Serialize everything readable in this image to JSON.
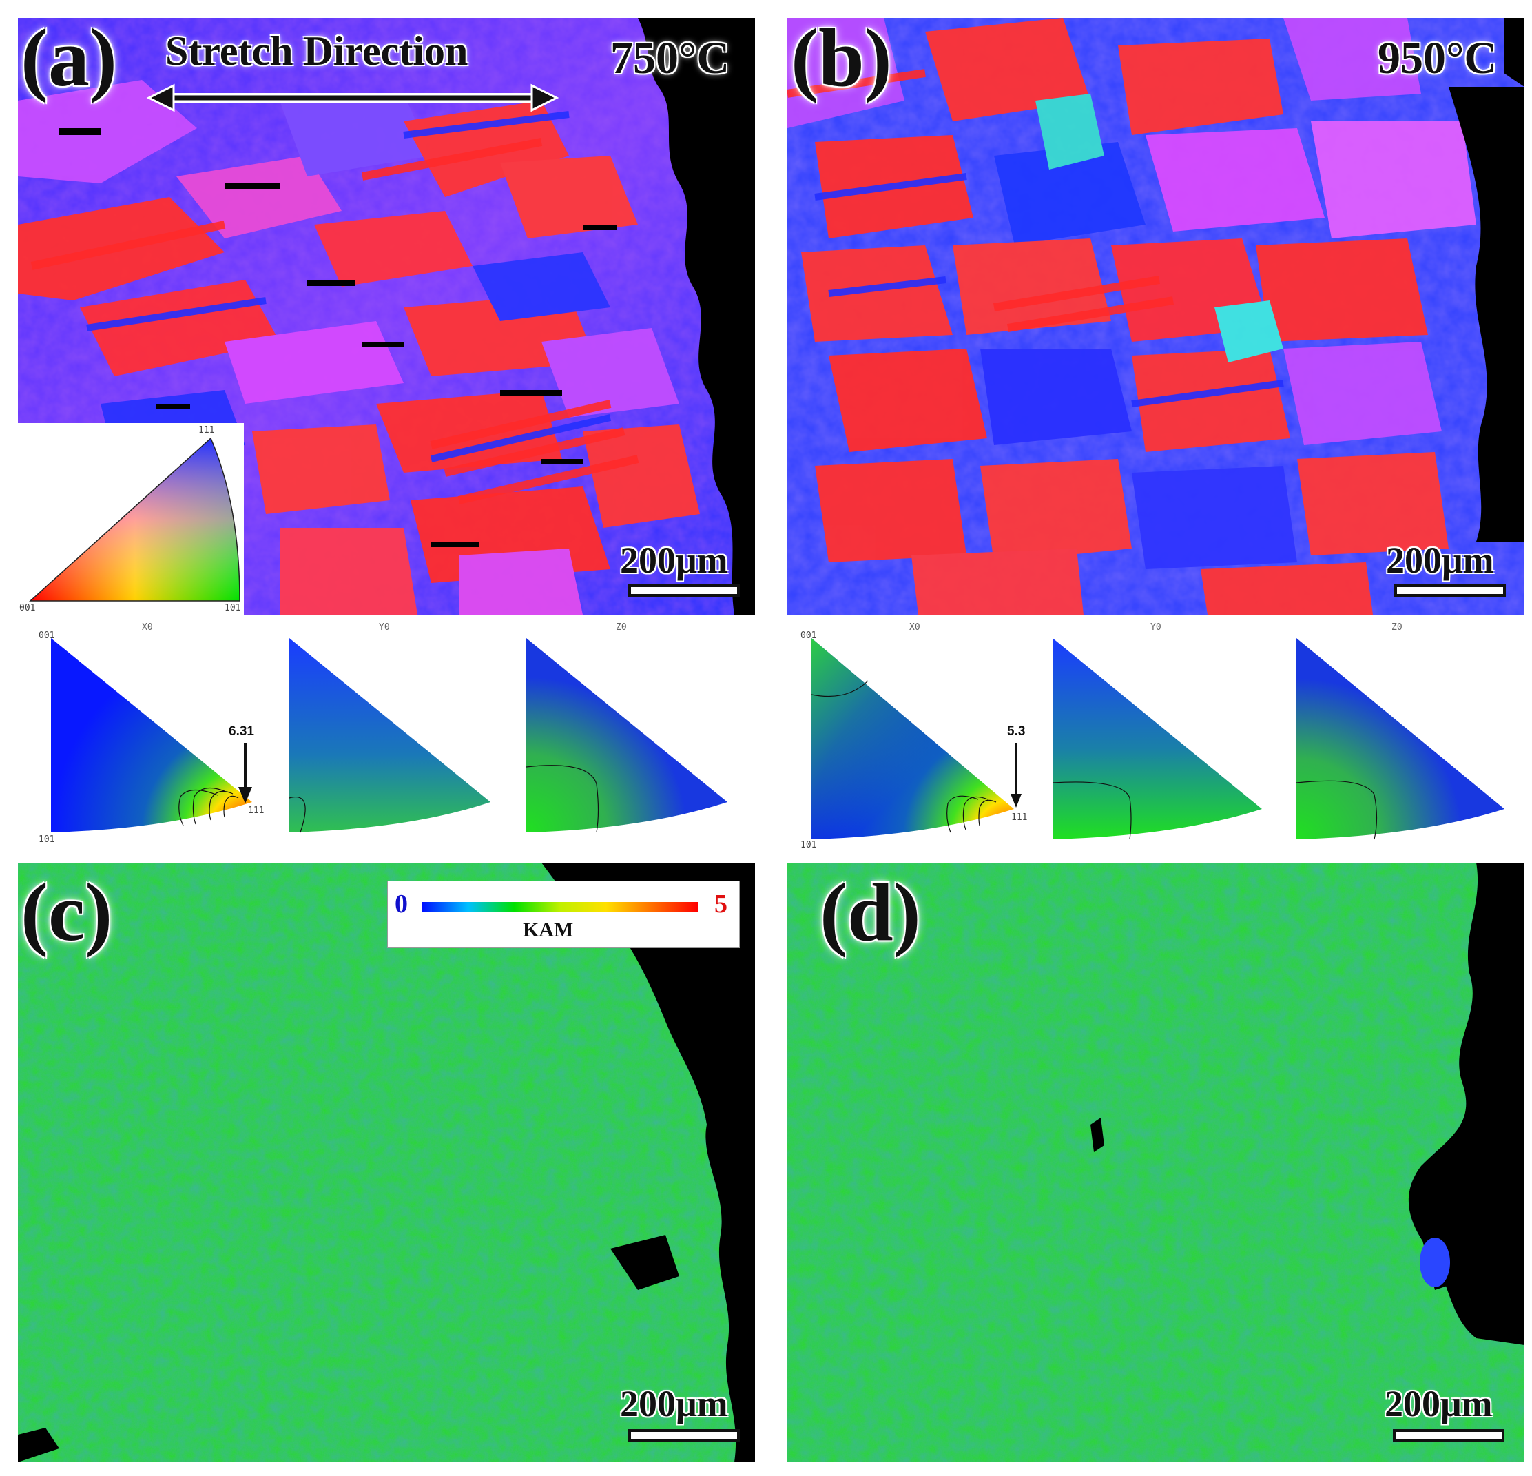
{
  "panels": {
    "a": {
      "label": "(a)",
      "temperature": "750°C",
      "scale": "200μm",
      "stretch": "Stretch Direction"
    },
    "b": {
      "label": "(b)",
      "temperature": "950°C",
      "scale": "200μm"
    },
    "c": {
      "label": "(c)",
      "scale": "200μm"
    },
    "d": {
      "label": "(d)",
      "scale": "200μm"
    }
  },
  "ipf_key": {
    "top": "111",
    "left": "001",
    "right": "101"
  },
  "ipf_left": {
    "heads": [
      "X0",
      "Y0",
      "Z0"
    ],
    "c001": "001",
    "c101": "101",
    "c111": "111",
    "max": "6.31"
  },
  "ipf_right": {
    "heads": [
      "X0",
      "Y0",
      "Z0"
    ],
    "c001": "001",
    "c101": "101",
    "c111": "111",
    "max": "5.3"
  },
  "kam": {
    "min": "0",
    "max": "5",
    "title": "KAM"
  },
  "colors": {
    "red": "#ff2a2a",
    "blue": "#1e2dff",
    "magenta": "#d24cff",
    "green": "#1fdc1f",
    "black": "#000000"
  }
}
